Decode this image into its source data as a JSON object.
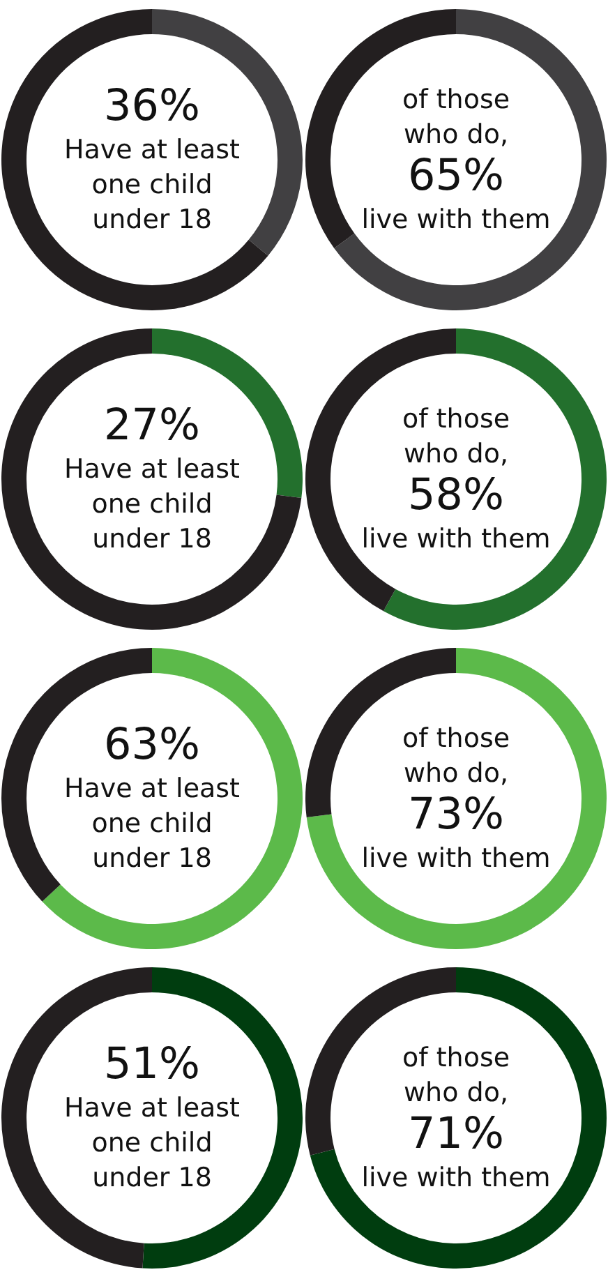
{
  "chart_data": [
    {
      "type": "donut",
      "categories": [
        null,
        null
      ],
      "values": [
        36,
        64
      ],
      "colors": [
        "#414042",
        "#231f20"
      ],
      "value_labels": [
        "36%",
        null
      ],
      "annotations": [
        "Have at least",
        "one child",
        "under 18"
      ]
    },
    {
      "type": "donut",
      "categories": [
        null,
        null
      ],
      "values": [
        65,
        35
      ],
      "colors": [
        "#414042",
        "#231f20"
      ],
      "subtitle": [
        "of those",
        "who do,"
      ],
      "value_labels": [
        "65%",
        null
      ],
      "annotations": [
        "live with them"
      ]
    },
    {
      "type": "donut",
      "categories": [
        null,
        null
      ],
      "values": [
        27,
        73
      ],
      "colors": [
        "#23702d",
        "#231f20"
      ],
      "value_labels": [
        "27%",
        null
      ],
      "annotations": [
        "Have at least",
        "one child",
        "under 18"
      ]
    },
    {
      "type": "donut",
      "categories": [
        null,
        null
      ],
      "values": [
        58,
        42
      ],
      "colors": [
        "#23702d",
        "#231f20"
      ],
      "subtitle": [
        "of those",
        "who do,"
      ],
      "value_labels": [
        "58%",
        null
      ],
      "annotations": [
        "live with them"
      ]
    },
    {
      "type": "donut",
      "categories": [
        null,
        null
      ],
      "values": [
        63,
        37
      ],
      "colors": [
        "#5cba4a",
        "#231f20"
      ],
      "value_labels": [
        "63%",
        null
      ],
      "annotations": [
        "Have at least",
        "one child",
        "under 18"
      ]
    },
    {
      "type": "donut",
      "categories": [
        null,
        null
      ],
      "values": [
        73,
        27
      ],
      "colors": [
        "#5cba4a",
        "#231f20"
      ],
      "subtitle": [
        "of those",
        "who do,"
      ],
      "value_labels": [
        "73%",
        null
      ],
      "annotations": [
        "live with them"
      ]
    },
    {
      "type": "donut",
      "categories": [
        null,
        null
      ],
      "values": [
        51,
        49
      ],
      "colors": [
        "#003d0f",
        "#231f20"
      ],
      "value_labels": [
        "51%",
        null
      ],
      "annotations": [
        "Have at least",
        "one child",
        "under 18"
      ]
    },
    {
      "type": "donut",
      "categories": [
        null,
        null
      ],
      "values": [
        71,
        29
      ],
      "colors": [
        "#003d0f",
        "#231f20"
      ],
      "subtitle": [
        "of those",
        "who do,"
      ],
      "value_labels": [
        "71%",
        null
      ],
      "annotations": [
        "live with them"
      ]
    }
  ]
}
